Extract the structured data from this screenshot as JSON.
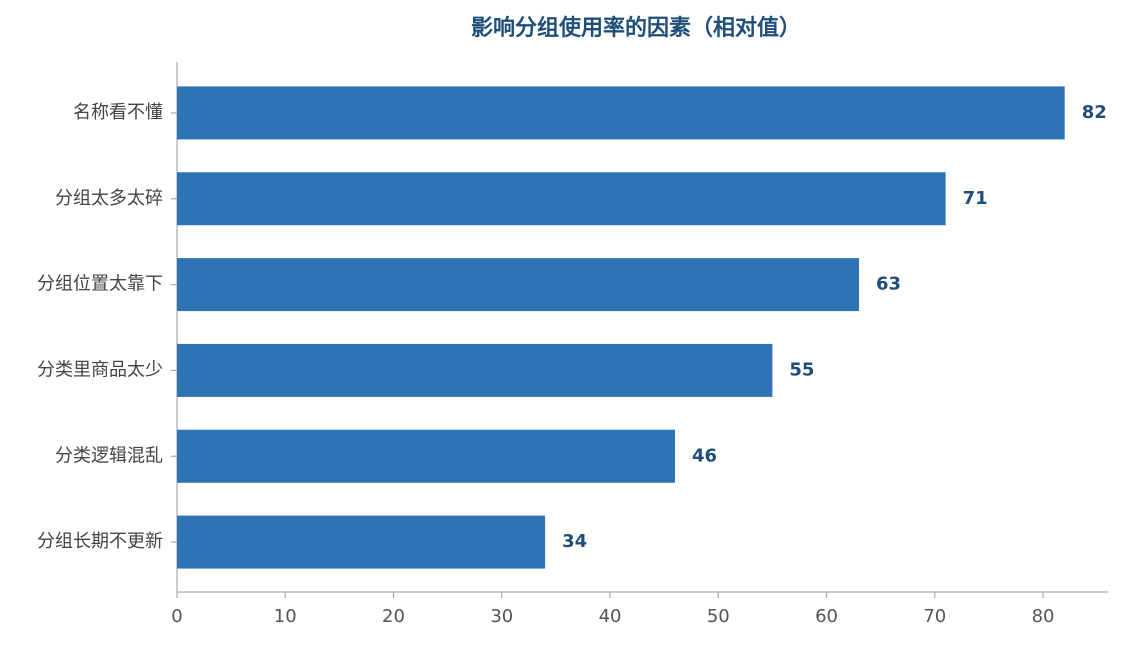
{
  "chart_data": {
    "type": "barh",
    "title": "影响分组使用率的因素（相对值）",
    "categories": [
      "名称看不懂",
      "分组太多太碎",
      "分组位置太靠下",
      "分类里商品太少",
      "分类逻辑混乱",
      "分组长期不更新"
    ],
    "values": [
      82,
      71,
      63,
      55,
      46,
      34
    ],
    "color": "#2e74b5",
    "label_color": "#1f4e79",
    "xlim": [
      0,
      86
    ],
    "xticks": [
      0,
      10,
      20,
      30,
      40,
      50,
      60,
      70,
      80
    ],
    "grid": false
  }
}
